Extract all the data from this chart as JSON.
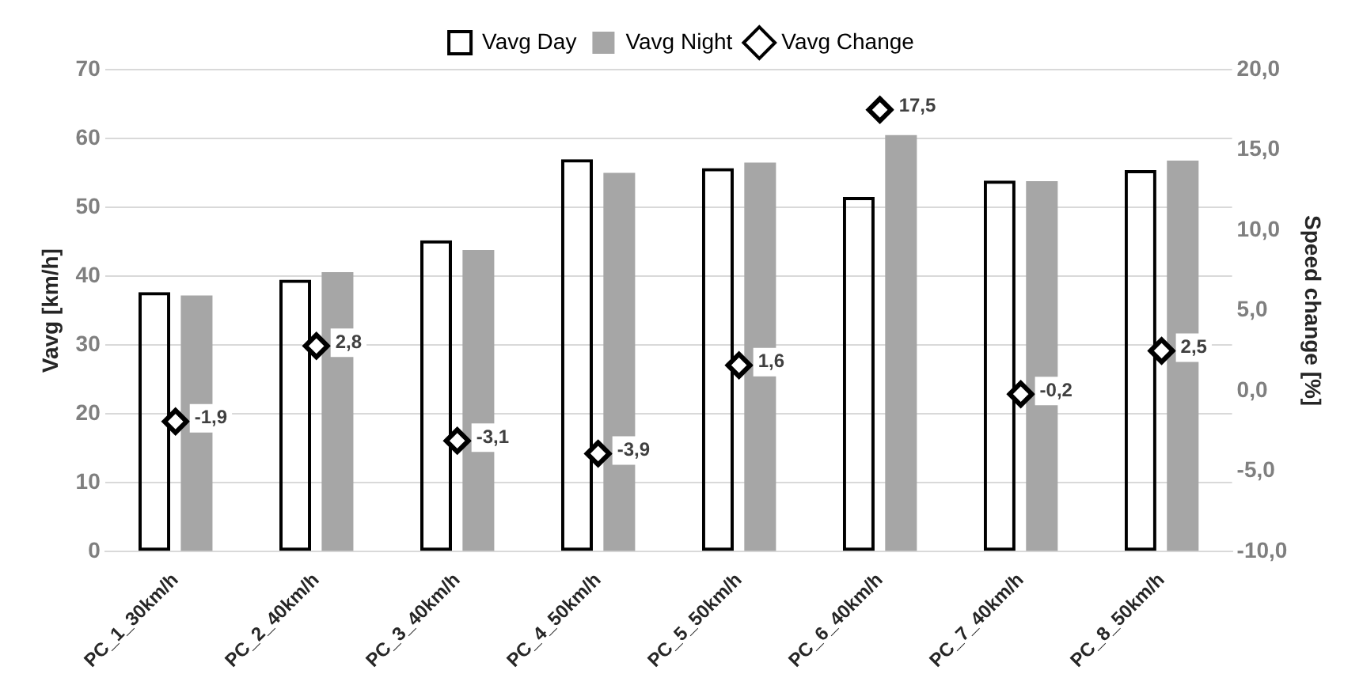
{
  "chart_data": {
    "type": "bar",
    "categories": [
      "PC_1_30km/h",
      "PC_2_40km/h",
      "PC_3_40km/h",
      "PC_4_50km/h",
      "PC_5_50km/h",
      "PC_6_40km/h",
      "PC_7_40km/h",
      "PC_8_50km/h"
    ],
    "series": [
      {
        "name": "Vavg Day",
        "color": "#000000",
        "values": [
          37.7,
          39.5,
          45.2,
          57.0,
          55.7,
          51.5,
          53.9,
          55.4
        ]
      },
      {
        "name": "Vavg Night",
        "color": "#a6a6a6",
        "values": [
          37.2,
          40.6,
          43.8,
          55.0,
          56.5,
          60.5,
          53.8,
          56.8
        ]
      },
      {
        "name": "Vavg Change",
        "type": "scatter",
        "axis": "y2",
        "color": "#000000",
        "values": [
          -1.9,
          2.8,
          -3.1,
          -3.9,
          1.6,
          17.5,
          -0.2,
          2.5
        ],
        "value_labels": [
          "-1,9",
          "2,8",
          "-3,1",
          "-3,9",
          "1,6",
          "17,5",
          "-0,2",
          "2,5"
        ]
      }
    ],
    "ylabel": "Vavg [km/h]",
    "y2label": "Speed change [%]",
    "ylim": [
      0,
      70
    ],
    "yticks": [
      0,
      10,
      20,
      30,
      40,
      50,
      60,
      70
    ],
    "y2lim": [
      -10,
      20
    ],
    "y2ticks": [
      {
        "value": -10,
        "label": "-10,0"
      },
      {
        "value": -5,
        "label": "-5,0"
      },
      {
        "value": 0,
        "label": "0,0"
      },
      {
        "value": 5,
        "label": "5,0"
      },
      {
        "value": 10,
        "label": "10,0"
      },
      {
        "value": 15,
        "label": "15,0"
      },
      {
        "value": 20,
        "label": "20,0"
      }
    ],
    "grid": "y",
    "legend": "top",
    "marker": "diamond"
  }
}
